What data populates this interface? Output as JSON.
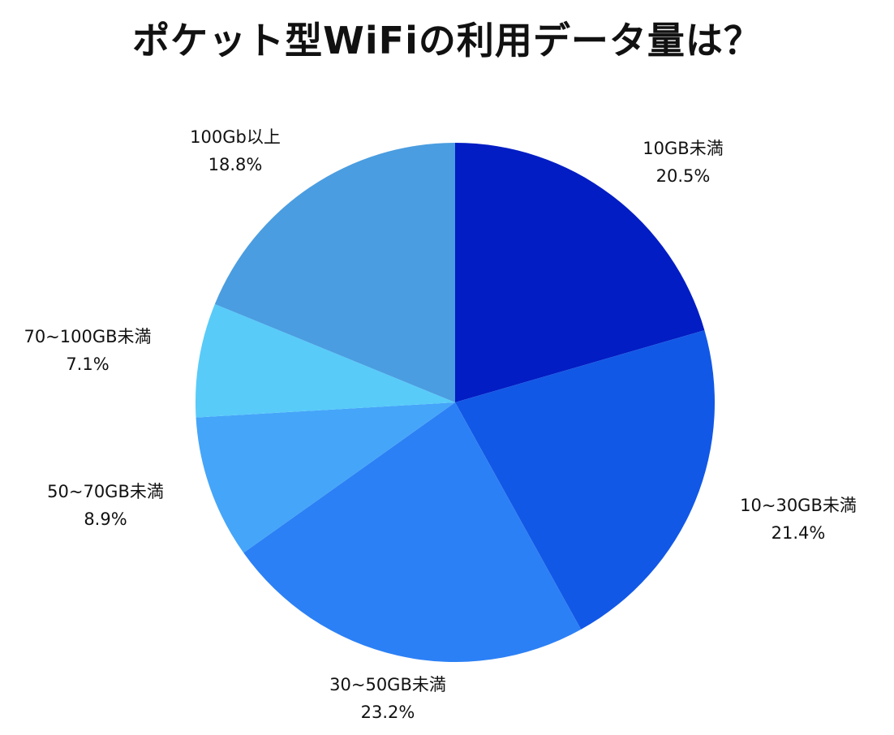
{
  "chart_data": {
    "type": "pie",
    "title": "ポケット型WiFiの利用データ量は？",
    "start": "12 o'clock",
    "direction": "clockwise",
    "slices": [
      {
        "label": "10GB未満",
        "value": 20.5,
        "display": "20.5%",
        "color": "#021DC4"
      },
      {
        "label": "10~30GB未満",
        "value": 21.4,
        "display": "21.4%",
        "color": "#1258E6"
      },
      {
        "label": "30~50GB未満",
        "value": 23.2,
        "display": "23.2%",
        "color": "#2C80F5"
      },
      {
        "label": "50~70GB未満",
        "value": 8.9,
        "display": "8.9%",
        "color": "#45A5F9"
      },
      {
        "label": "70~100GB未満",
        "value": 7.1,
        "display": "7.1%",
        "color": "#58CBF9"
      },
      {
        "label": "100Gb以上",
        "value": 18.8,
        "display": "18.8%",
        "color": "#4A9DE0"
      }
    ]
  }
}
